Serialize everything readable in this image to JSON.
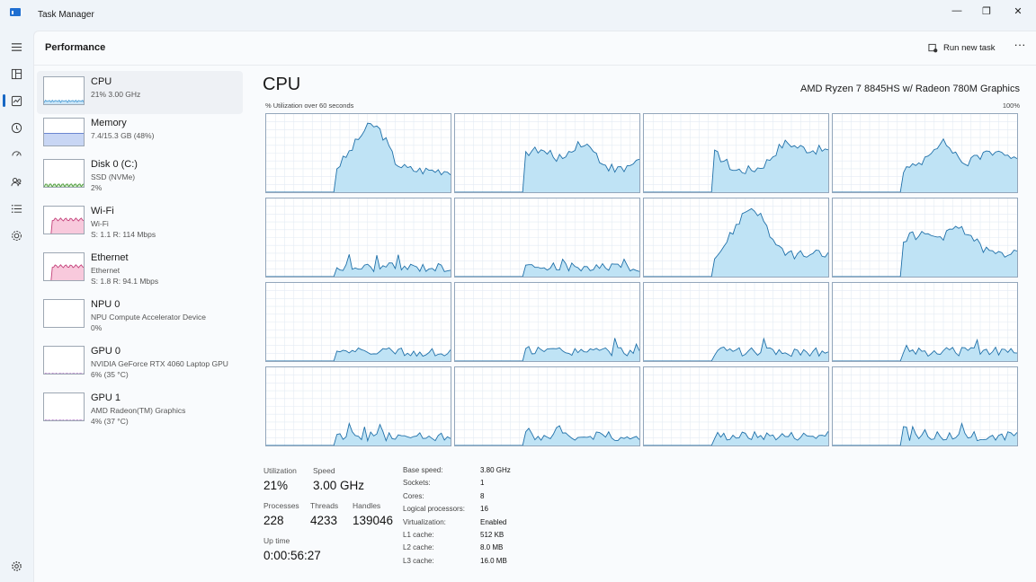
{
  "window": {
    "title": "Task Manager",
    "minimize_glyph": "—",
    "maximize_glyph": "❐",
    "close_glyph": "✕"
  },
  "rail": {
    "icons": [
      "hamburger-icon",
      "processes-icon",
      "performance-icon",
      "app-history-icon",
      "startup-apps-icon",
      "users-icon",
      "details-icon",
      "services-icon",
      "settings-icon"
    ],
    "active": "performance-icon"
  },
  "header": {
    "title": "Performance",
    "run_new_task": "Run new task",
    "more": "···"
  },
  "sidebar": {
    "items": [
      {
        "name": "CPU",
        "sub1": "21% 3.00 GHz",
        "sub2": "",
        "color": "#4a9dd6",
        "fill": "#c9e4f6",
        "selected": true
      },
      {
        "name": "Memory",
        "sub1": "7.4/15.3 GB (48%)",
        "sub2": "",
        "color": "#5474c9",
        "fill": "#c8d6f4",
        "selected": false
      },
      {
        "name": "Disk 0 (C:)",
        "sub1": "SSD (NVMe)",
        "sub2": "2%",
        "color": "#4d9a3b",
        "fill": "#d3ecc9",
        "selected": false
      },
      {
        "name": "Wi-Fi",
        "sub1": "Wi-Fi",
        "sub2": "S: 1.1  R: 114 Mbps",
        "color": "#c4417a",
        "fill": "#f8c9dc",
        "selected": false
      },
      {
        "name": "Ethernet",
        "sub1": "Ethernet",
        "sub2": "S: 1.8  R: 94.1 Mbps",
        "color": "#c4417a",
        "fill": "#f8c9dc",
        "selected": false
      },
      {
        "name": "NPU 0",
        "sub1": "NPU Compute Accelerator Device",
        "sub2": "0%",
        "color": "#9b59b6",
        "fill": "#ead9f2",
        "selected": false
      },
      {
        "name": "GPU 0",
        "sub1": "NVIDIA GeForce RTX 4060 Laptop GPU",
        "sub2": "6% (35 °C)",
        "color": "#8e44ad",
        "fill": "#e6d2f0",
        "selected": false
      },
      {
        "name": "GPU 1",
        "sub1": "AMD Radeon(TM) Graphics",
        "sub2": "4% (37 °C)",
        "color": "#8e44ad",
        "fill": "#e6d2f0",
        "selected": false
      }
    ]
  },
  "detail": {
    "heading": "CPU",
    "model": "AMD Ryzen 7 8845HS w/ Radeon 780M Graphics",
    "util_caption": "% Utilization over 60 seconds",
    "util_max": "100%",
    "graph_line": "#1e6fa8",
    "graph_fill": "#bfe3f5",
    "graph_grid": "#e3ebf3"
  },
  "stats": {
    "utilization_label": "Utilization",
    "utilization": "21%",
    "speed_label": "Speed",
    "speed": "3.00 GHz",
    "processes_label": "Processes",
    "processes": "228",
    "threads_label": "Threads",
    "threads": "4233",
    "handles_label": "Handles",
    "handles": "139046",
    "uptime_label": "Up time",
    "uptime": "0:00:56:27"
  },
  "specs": [
    {
      "key": "Base speed:",
      "value": "3.80 GHz"
    },
    {
      "key": "Sockets:",
      "value": "1"
    },
    {
      "key": "Cores:",
      "value": "8"
    },
    {
      "key": "Logical processors:",
      "value": "16"
    },
    {
      "key": "Virtualization:",
      "value": "Enabled"
    },
    {
      "key": "L1 cache:",
      "value": "512 KB"
    },
    {
      "key": "L2 cache:",
      "value": "8.0 MB"
    },
    {
      "key": "L3 cache:",
      "value": "16.0 MB"
    }
  ]
}
